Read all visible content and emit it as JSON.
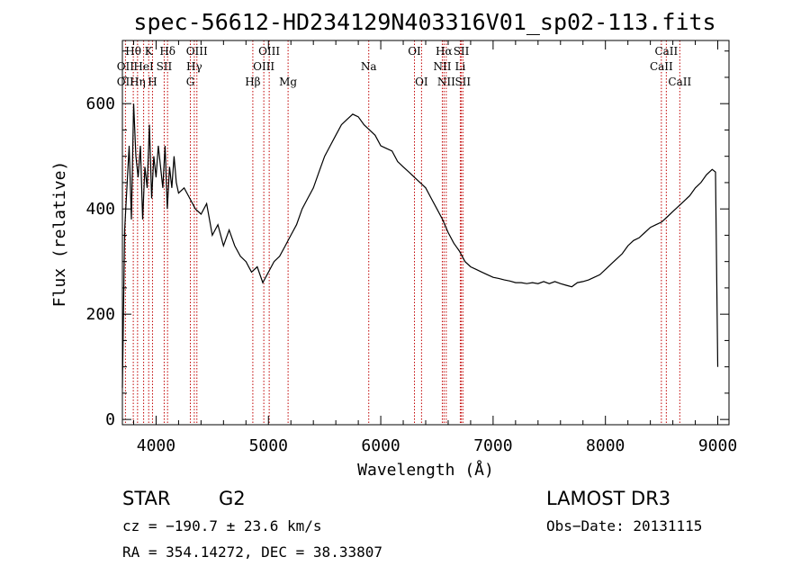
{
  "chart_data": {
    "type": "line",
    "title": "spec-56612-HD234129N403316V01_sp02-113.fits",
    "xlabel": "Wavelength (Å)",
    "ylabel": "Flux (relative)",
    "xlim": [
      3700,
      9100
    ],
    "ylim": [
      -10,
      720
    ],
    "xticks": [
      4000,
      5000,
      6000,
      7000,
      8000,
      9000
    ],
    "yticks": [
      0,
      200,
      400,
      600
    ],
    "spectrum": {
      "x": [
        3700,
        3720,
        3740,
        3760,
        3780,
        3800,
        3820,
        3840,
        3860,
        3880,
        3900,
        3920,
        3940,
        3960,
        3980,
        4000,
        4020,
        4040,
        4060,
        4080,
        4100,
        4120,
        4140,
        4160,
        4180,
        4200,
        4250,
        4300,
        4350,
        4400,
        4450,
        4500,
        4550,
        4600,
        4650,
        4700,
        4750,
        4800,
        4850,
        4900,
        4950,
        5000,
        5050,
        5100,
        5150,
        5200,
        5250,
        5300,
        5350,
        5400,
        5450,
        5500,
        5550,
        5600,
        5650,
        5700,
        5750,
        5800,
        5850,
        5900,
        5950,
        6000,
        6050,
        6100,
        6150,
        6200,
        6250,
        6300,
        6350,
        6400,
        6450,
        6500,
        6550,
        6600,
        6650,
        6700,
        6750,
        6800,
        6850,
        6900,
        6950,
        7000,
        7050,
        7100,
        7150,
        7200,
        7250,
        7300,
        7350,
        7400,
        7450,
        7500,
        7550,
        7600,
        7650,
        7700,
        7750,
        7800,
        7850,
        7900,
        7950,
        8000,
        8050,
        8100,
        8150,
        8200,
        8250,
        8300,
        8350,
        8400,
        8450,
        8500,
        8550,
        8600,
        8650,
        8700,
        8750,
        8800,
        8850,
        8900,
        8950,
        8980,
        9000
      ],
      "y": [
        60,
        360,
        440,
        520,
        380,
        600,
        500,
        460,
        520,
        380,
        480,
        440,
        560,
        420,
        500,
        460,
        520,
        480,
        440,
        520,
        400,
        480,
        440,
        500,
        450,
        430,
        440,
        420,
        400,
        390,
        410,
        350,
        370,
        330,
        360,
        330,
        310,
        300,
        280,
        290,
        260,
        280,
        300,
        310,
        330,
        350,
        370,
        400,
        420,
        440,
        470,
        500,
        520,
        540,
        560,
        570,
        580,
        575,
        560,
        550,
        540,
        520,
        515,
        510,
        490,
        480,
        470,
        460,
        450,
        440,
        420,
        400,
        380,
        355,
        335,
        320,
        300,
        290,
        285,
        280,
        275,
        270,
        268,
        265,
        263,
        260,
        260,
        258,
        260,
        258,
        262,
        258,
        262,
        258,
        255,
        252,
        260,
        262,
        265,
        270,
        275,
        285,
        295,
        305,
        315,
        330,
        340,
        345,
        355,
        365,
        370,
        375,
        385,
        395,
        405,
        415,
        425,
        440,
        450,
        465,
        475,
        470,
        100
      ]
    },
    "line_labels": [
      {
        "text": "Hθ",
        "x": 3797,
        "row": 1
      },
      {
        "text": "K",
        "x": 3934,
        "row": 1
      },
      {
        "text": "Hδ",
        "x": 4102,
        "row": 1
      },
      {
        "text": "OIII",
        "x": 4363,
        "row": 1
      },
      {
        "text": "OIII",
        "x": 5007,
        "row": 1
      },
      {
        "text": "OI",
        "x": 6300,
        "row": 1
      },
      {
        "text": "Hα",
        "x": 6563,
        "row": 1
      },
      {
        "text": "SII",
        "x": 6717,
        "row": 1
      },
      {
        "text": "CaII",
        "x": 8542,
        "row": 1
      },
      {
        "text": "OII",
        "x": 3727,
        "row": 2
      },
      {
        "text": "HeI",
        "x": 3889,
        "row": 2
      },
      {
        "text": "SII",
        "x": 4072,
        "row": 2
      },
      {
        "text": "Hγ",
        "x": 4340,
        "row": 2
      },
      {
        "text": "OIII",
        "x": 4959,
        "row": 2
      },
      {
        "text": "Na",
        "x": 5893,
        "row": 2
      },
      {
        "text": "NII",
        "x": 6548,
        "row": 2
      },
      {
        "text": "Li",
        "x": 6708,
        "row": 2
      },
      {
        "text": "CaII",
        "x": 8498,
        "row": 2
      },
      {
        "text": "OII",
        "x": 3727,
        "row": 3
      },
      {
        "text": "Hη",
        "x": 3835,
        "row": 3
      },
      {
        "text": "H",
        "x": 3968,
        "row": 3
      },
      {
        "text": "G",
        "x": 4305,
        "row": 3
      },
      {
        "text": "Hβ",
        "x": 4861,
        "row": 3
      },
      {
        "text": "Mg",
        "x": 5175,
        "row": 3
      },
      {
        "text": "OI",
        "x": 6363,
        "row": 3
      },
      {
        "text": "NII",
        "x": 6583,
        "row": 3
      },
      {
        "text": "SII",
        "x": 6731,
        "row": 3
      },
      {
        "text": "CaII",
        "x": 8662,
        "row": 3
      }
    ],
    "line_markers": [
      3727,
      3797,
      3835,
      3889,
      3934,
      3968,
      4072,
      4102,
      4305,
      4340,
      4363,
      4861,
      4959,
      5007,
      5175,
      5893,
      6300,
      6363,
      6548,
      6563,
      6583,
      6708,
      6717,
      6731,
      8498,
      8542,
      8662
    ]
  },
  "info": {
    "object_class": "STAR",
    "subclass": "G2",
    "survey": "LAMOST DR3",
    "redshift": "cz = −190.7 ± 23.6 km/s",
    "obs_date": "Obs−Date: 20131115",
    "coords": "RA = 354.14272, DEC =  38.33807"
  },
  "colors": {
    "spectrum": "#000000",
    "marker": "#c00000",
    "frame": "#000000"
  }
}
